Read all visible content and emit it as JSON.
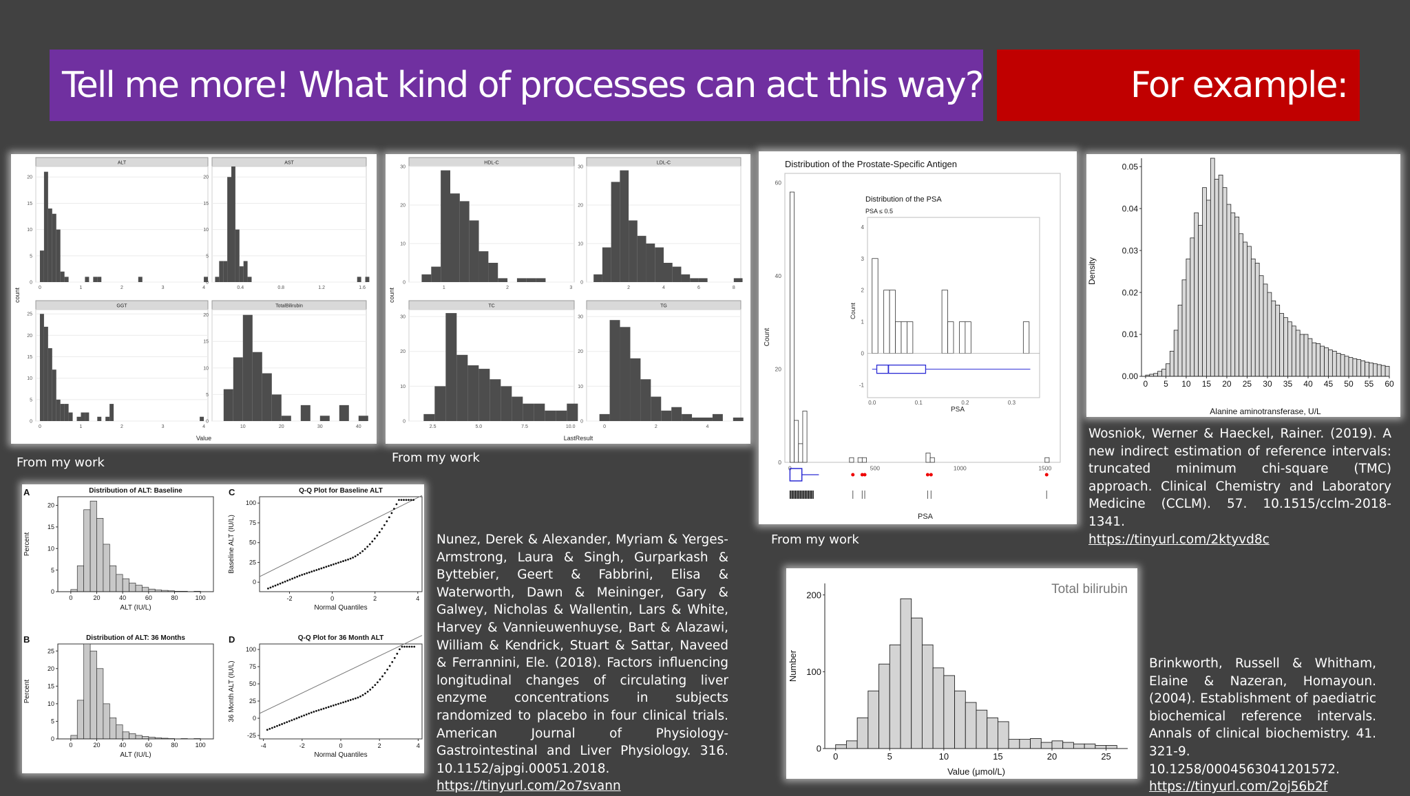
{
  "banners": {
    "title": "Tell me more! What kind of processes can act this way?",
    "example": "For example:"
  },
  "captions": {
    "liver_panel": "From my work",
    "lipid_panel": "From my work",
    "psa_panel": "From my work"
  },
  "citations": {
    "wosniok": {
      "text": "Wosniok, Werner & Haeckel, Rainer. (2019). A new indirect estimation of reference intervals: truncated minimum chi-square (TMC) approach. Clinical Chemistry and Laboratory Medicine (CCLM). 57. 10.1515/cclm-2018-1341.",
      "url": "https://tinyurl.com/2ktyvd8c"
    },
    "nunez": {
      "text": "Nunez, Derek & Alexander, Myriam & Yerges-Armstrong, Laura & Singh, Gurparkash & Byttebier, Geert & Fabbrini, Elisa & Waterworth, Dawn & Meininger, Gary & Galwey, Nicholas & Wallentin, Lars & White, Harvey & Vannieuwenhuyse, Bart & Alazawi, William & Kendrick, Stuart & Sattar, Naveed & Ferrannini, Ele. (2018). Factors influencing longitudinal changes of circulating liver enzyme concentrations in subjects randomized to placebo in four clinical trials. American Journal of Physiology-Gastrointestinal and Liver Physiology. 316. 10.1152/ajpgi.00051.2018.",
      "url": "https://tinyurl.com/2o7svann"
    },
    "brinkworth": {
      "text": "Brinkworth, Russell & Whitham, Elaine & Nazeran, Homayoun. (2004). Establishment of paediatric biochemical reference intervals. Annals of clinical biochemistry. 41. 321-9. 10.1258/0004563041201572.",
      "url": "https://tinyurl.com/2oj56b2f"
    }
  },
  "chart_data": [
    {
      "type": "bar",
      "id": "liver",
      "ylabel": "count",
      "xlabel": "Value",
      "facets": [
        {
          "name": "ALT",
          "xticks": [
            "0",
            "1",
            "2",
            "3",
            "4"
          ],
          "yticks": [
            "0",
            "5",
            "10",
            "15",
            "20"
          ],
          "ylim": [
            0,
            22
          ],
          "xlim": [
            -0.1,
            4.1
          ],
          "start": 0,
          "binwidth": 0.1,
          "values": [
            6,
            21,
            14,
            13,
            10,
            2,
            1,
            0,
            0,
            0,
            0,
            1,
            0,
            1,
            1,
            0,
            0,
            0,
            0,
            0,
            0,
            0,
            0,
            0,
            1,
            0,
            0,
            0,
            0,
            0,
            0,
            0,
            0,
            0,
            0,
            0,
            0,
            0,
            0,
            0,
            1
          ]
        },
        {
          "name": "AST",
          "xticks": [
            "0.4",
            "0.8",
            "1.2",
            "1.6"
          ],
          "tickvals": [
            0.4,
            0.8,
            1.2,
            1.6
          ],
          "yticks": [
            "0",
            "5",
            "10",
            "15",
            "20"
          ],
          "ylim": [
            0,
            22
          ],
          "xlim": [
            0.12,
            1.64
          ],
          "start": 0.15,
          "binwidth": 0.04,
          "values": [
            1,
            4,
            4,
            20,
            22,
            10,
            3,
            4,
            1,
            0,
            0,
            0,
            0,
            0,
            0,
            0,
            0,
            0,
            0,
            0,
            0,
            0,
            0,
            0,
            0,
            0,
            0,
            0,
            0,
            0,
            0,
            0,
            0,
            0,
            0,
            1,
            0,
            1
          ]
        },
        {
          "name": "GGT",
          "xticks": [
            "0",
            "1",
            "2",
            "3",
            "4"
          ],
          "yticks": [
            "0",
            "5",
            "10",
            "15",
            "20",
            "25"
          ],
          "ylim": [
            0,
            26
          ],
          "xlim": [
            -0.1,
            4.1
          ],
          "start": 0,
          "binwidth": 0.1,
          "values": [
            25,
            22,
            17,
            12,
            5,
            4,
            4,
            2,
            0,
            1,
            2,
            2,
            0,
            0,
            1,
            0,
            1,
            4,
            0,
            0,
            0,
            0,
            0,
            0,
            0,
            0,
            0,
            0,
            0,
            0,
            0,
            0,
            0,
            0,
            0,
            0,
            0,
            0,
            0,
            1
          ]
        },
        {
          "name": "TotalBilirubin",
          "xticks": [
            "10",
            "20",
            "30",
            "40"
          ],
          "yticks": [
            "0",
            "5",
            "10",
            "15",
            "20"
          ],
          "ylim": [
            0,
            21
          ],
          "xlim": [
            2,
            42
          ],
          "start": 5,
          "binwidth": 2.5,
          "values": [
            6,
            12,
            20,
            13,
            9,
            5,
            1,
            0,
            3,
            0,
            1,
            0,
            3,
            0,
            1,
            0,
            1
          ]
        }
      ]
    },
    {
      "type": "bar",
      "id": "lipid",
      "ylabel": "count",
      "xlabel": "LastResult",
      "facets": [
        {
          "name": "HDL-C",
          "xticks": [
            "1",
            "2",
            "3"
          ],
          "yticks": [
            "0",
            "10",
            "20",
            "30"
          ],
          "ylim": [
            0,
            30
          ],
          "xlim": [
            0.45,
            3.05
          ],
          "start": 0.65,
          "binwidth": 0.15,
          "values": [
            2,
            4,
            29,
            23,
            21,
            16,
            8,
            5,
            1,
            0,
            1,
            1,
            1
          ]
        },
        {
          "name": "LDL-C",
          "xticks": [
            "2",
            "4",
            "6",
            "8"
          ],
          "yticks": [
            "0",
            "10",
            "20",
            "30"
          ],
          "ylim": [
            0,
            30
          ],
          "xlim": [
            -0.4,
            8.4
          ],
          "start": 0,
          "binwidth": 0.5,
          "values": [
            2,
            9,
            26,
            29,
            16,
            12,
            10,
            9,
            5,
            4,
            2,
            1,
            1,
            0,
            0,
            0,
            1
          ]
        },
        {
          "name": "TC",
          "xticks": [
            "2.5",
            "5.0",
            "7.5",
            "10.0"
          ],
          "yticks": [
            "0",
            "10",
            "20",
            "30"
          ],
          "ylim": [
            0,
            32
          ],
          "xlim": [
            1.2,
            10.2
          ],
          "start": 2.0,
          "binwidth": 0.6,
          "values": [
            2,
            10,
            31,
            19,
            16,
            15,
            12,
            10,
            7,
            5,
            5,
            3,
            3,
            5
          ]
        },
        {
          "name": "TG",
          "xticks": [
            "0",
            "2",
            "4"
          ],
          "yticks": [
            "0",
            "10",
            "20",
            "30"
          ],
          "ylim": [
            0,
            32
          ],
          "xlim": [
            -0.7,
            5.3
          ],
          "start": -0.2,
          "binwidth": 0.4,
          "values": [
            2,
            29,
            27,
            18,
            12,
            7,
            3,
            4,
            2,
            1,
            1,
            2,
            0,
            1
          ]
        }
      ]
    },
    {
      "type": "bar",
      "id": "psa",
      "title": "Distribution of the Prostate-Specific Antigen",
      "xlabel": "PSA",
      "ylabel": "Count",
      "xticks": [
        "0",
        "500",
        "1000",
        "1500"
      ],
      "yticks": [
        "0",
        "20",
        "40",
        "60"
      ],
      "ylim": [
        0,
        62
      ],
      "xlim": [
        -30,
        1590
      ],
      "start": 0,
      "binwidth": 25,
      "values": [
        58,
        9,
        4,
        11,
        0,
        0,
        0,
        0,
        0,
        0,
        0,
        0,
        0,
        0,
        0,
        0,
        0,
        0,
        0,
        0,
        0,
        0,
        0,
        0,
        0,
        0,
        0,
        0,
        0,
        0,
        0,
        0,
        0,
        0,
        0,
        0,
        0,
        0,
        0,
        0,
        0,
        0,
        0,
        0,
        0,
        0,
        0,
        0,
        0,
        0,
        0,
        0,
        0,
        0,
        0,
        0,
        0,
        0,
        0,
        0,
        0,
        0,
        0,
        0,
        0,
        0,
        0,
        0,
        0,
        0,
        0,
        0,
        0,
        0,
        0,
        0,
        0,
        0,
        0,
        0,
        0,
        0,
        0,
        0,
        0,
        0,
        0,
        0,
        0,
        0
      ],
      "inset": {
        "title": "Distribution of the PSA",
        "subtitle": "PSA ≤ 0.5",
        "xlabel": "PSA",
        "ylabel": "Count",
        "xticks": [
          "0.0",
          "0.1",
          "0.2",
          "0.3"
        ],
        "yticks": [
          "-1",
          "0",
          "1",
          "2",
          "3",
          "4"
        ],
        "start": 0,
        "binwidth": 0.0125,
        "values": [
          3,
          0,
          2,
          2,
          1,
          1,
          1,
          0,
          0,
          0,
          0,
          0,
          2,
          1,
          0,
          1,
          1,
          0,
          0,
          0,
          0,
          0,
          0,
          0,
          0,
          0,
          1
        ]
      }
    },
    {
      "type": "bar",
      "id": "tmc",
      "xlabel": "Alanine aminotransferase, U/L",
      "ylabel": "Density",
      "xticks": [
        "0",
        "5",
        "10",
        "15",
        "20",
        "25",
        "30",
        "35",
        "40",
        "45",
        "50",
        "55",
        "60"
      ],
      "yticks": [
        "0.00",
        "0.01",
        "0.02",
        "0.03",
        "0.04",
        "0.05"
      ],
      "ylim": [
        0,
        0.052
      ],
      "xlim": [
        -1,
        60
      ],
      "start": 0,
      "binwidth": 1,
      "values": [
        0.0003,
        0.0005,
        0.0007,
        0.0012,
        0.0017,
        0.003,
        0.006,
        0.011,
        0.017,
        0.023,
        0.028,
        0.033,
        0.039,
        0.036,
        0.045,
        0.042,
        0.052,
        0.047,
        0.048,
        0.045,
        0.041,
        0.039,
        0.038,
        0.034,
        0.032,
        0.031,
        0.028,
        0.027,
        0.024,
        0.022,
        0.02,
        0.018,
        0.017,
        0.015,
        0.014,
        0.013,
        0.012,
        0.011,
        0.01,
        0.01,
        0.009,
        0.008,
        0.0078,
        0.0072,
        0.0068,
        0.0063,
        0.006,
        0.0055,
        0.0052,
        0.0048,
        0.0045,
        0.0042,
        0.004,
        0.0037,
        0.0034,
        0.0032,
        0.003,
        0.0028,
        0.0026,
        0.0024
      ]
    },
    {
      "type": "bar",
      "id": "nunez",
      "facets": [
        {
          "label": "A",
          "title": "Distribution of ALT: Baseline",
          "xlabel": "ALT (IU/L)",
          "ylabel": "Percent",
          "xticks": [
            "0",
            "20",
            "40",
            "60",
            "80",
            "100"
          ],
          "yticks": [
            "0",
            "5",
            "10",
            "15",
            "20"
          ],
          "ylim": [
            0,
            22
          ],
          "xlim": [
            -10,
            110
          ],
          "start": 0,
          "binwidth": 5,
          "values": [
            0.5,
            6,
            19,
            21,
            17,
            11,
            6,
            4,
            3,
            2,
            1.5,
            1,
            0.6,
            0.4,
            0.3,
            0.2,
            0.1,
            0.1,
            0,
            0.1
          ]
        },
        {
          "label": "B",
          "title": "Distribution of ALT: 36 Months",
          "xlabel": "ALT (IU/L)",
          "ylabel": "Percent",
          "xticks": [
            "0",
            "20",
            "40",
            "60",
            "80",
            "100"
          ],
          "yticks": [
            "0",
            "5",
            "10",
            "15",
            "20",
            "25"
          ],
          "ylim": [
            0,
            27
          ],
          "xlim": [
            -10,
            110
          ],
          "start": 0,
          "binwidth": 5,
          "values": [
            1,
            11,
            27,
            25,
            20,
            10,
            6,
            4,
            2,
            1.5,
            1,
            0.7,
            0.5,
            0.3,
            0.2,
            0.1,
            0,
            0.1,
            0,
            0.1
          ]
        }
      ],
      "qq": [
        {
          "label": "C",
          "title": "Q-Q Plot for Baseline ALT",
          "xlabel": "Normal Quantiles",
          "ylabel": "Baseline ALT (IU/L)",
          "xticks": [
            "-2",
            "0",
            "2",
            "4"
          ],
          "yticks": [
            "0",
            "25",
            "50",
            "75",
            "100"
          ]
        },
        {
          "label": "D",
          "title": "Q-Q Plot for 36 Month ALT",
          "xlabel": "Normal Quantiles",
          "ylabel": "36 Month ALT (IU/L)",
          "xticks": [
            "-4",
            "-2",
            "0",
            "2",
            "4"
          ],
          "yticks": [
            "-25",
            "0",
            "25",
            "50",
            "75",
            "100"
          ]
        }
      ]
    },
    {
      "type": "bar",
      "id": "bili",
      "title": "Total bilirubin",
      "xlabel": "Value (μmol/L)",
      "ylabel": "Number",
      "xticks": [
        "0",
        "5",
        "10",
        "15",
        "20",
        "25"
      ],
      "yticks": [
        "0",
        "100",
        "200"
      ],
      "ylim": [
        0,
        215
      ],
      "xlim": [
        -1,
        27
      ],
      "start": 0,
      "binwidth": 1,
      "values": [
        5,
        10,
        40,
        75,
        110,
        135,
        195,
        170,
        135,
        105,
        95,
        75,
        60,
        50,
        40,
        35,
        12,
        12,
        13,
        8,
        10,
        8,
        6,
        6,
        4,
        4
      ]
    }
  ]
}
